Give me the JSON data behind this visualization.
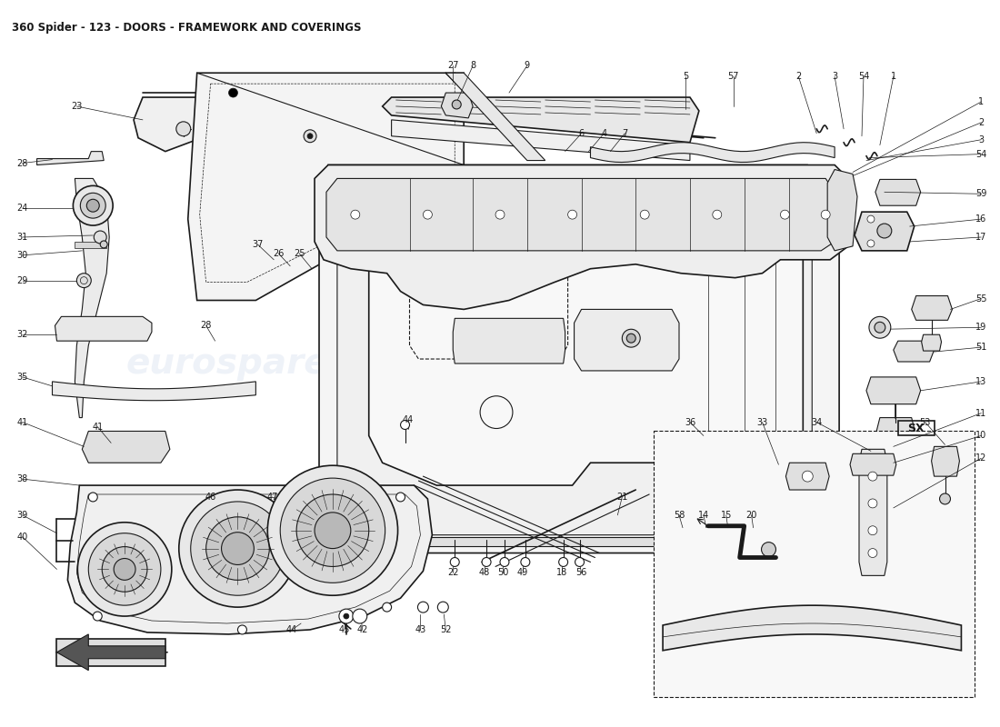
{
  "title": "360 Spider - 123 - DOORS - FRAMEWORK AND COVERINGS",
  "title_fontsize": 8.5,
  "title_fontweight": "bold",
  "bg_color": "#ffffff",
  "line_color": "#1a1a1a",
  "wm_color": "#c8d4e8",
  "wm_alpha": 0.3,
  "fig_width": 11.0,
  "fig_height": 8.0,
  "dpi": 100,
  "labels_right": [
    [
      "1",
      1060,
      110
    ],
    [
      "2",
      1060,
      128
    ],
    [
      "3",
      1060,
      144
    ],
    [
      "54",
      1060,
      160
    ],
    [
      "59",
      1060,
      210
    ],
    [
      "16",
      1060,
      238
    ],
    [
      "17",
      1060,
      255
    ],
    [
      "55",
      1060,
      330
    ],
    [
      "51",
      1060,
      380
    ],
    [
      "19",
      1060,
      360
    ],
    [
      "13",
      1060,
      420
    ],
    [
      "11",
      1060,
      450
    ],
    [
      "10",
      1060,
      475
    ],
    [
      "12",
      1060,
      500
    ]
  ],
  "labels_left": [
    [
      "23",
      100,
      128
    ],
    [
      "28",
      28,
      178
    ],
    [
      "24",
      28,
      228
    ],
    [
      "31",
      28,
      258
    ],
    [
      "30",
      28,
      278
    ],
    [
      "29",
      28,
      308
    ],
    [
      "32",
      28,
      368
    ],
    [
      "35",
      28,
      410
    ],
    [
      "41",
      28,
      468
    ],
    [
      "38",
      28,
      528
    ],
    [
      "39",
      28,
      568
    ],
    [
      "40",
      28,
      590
    ]
  ]
}
